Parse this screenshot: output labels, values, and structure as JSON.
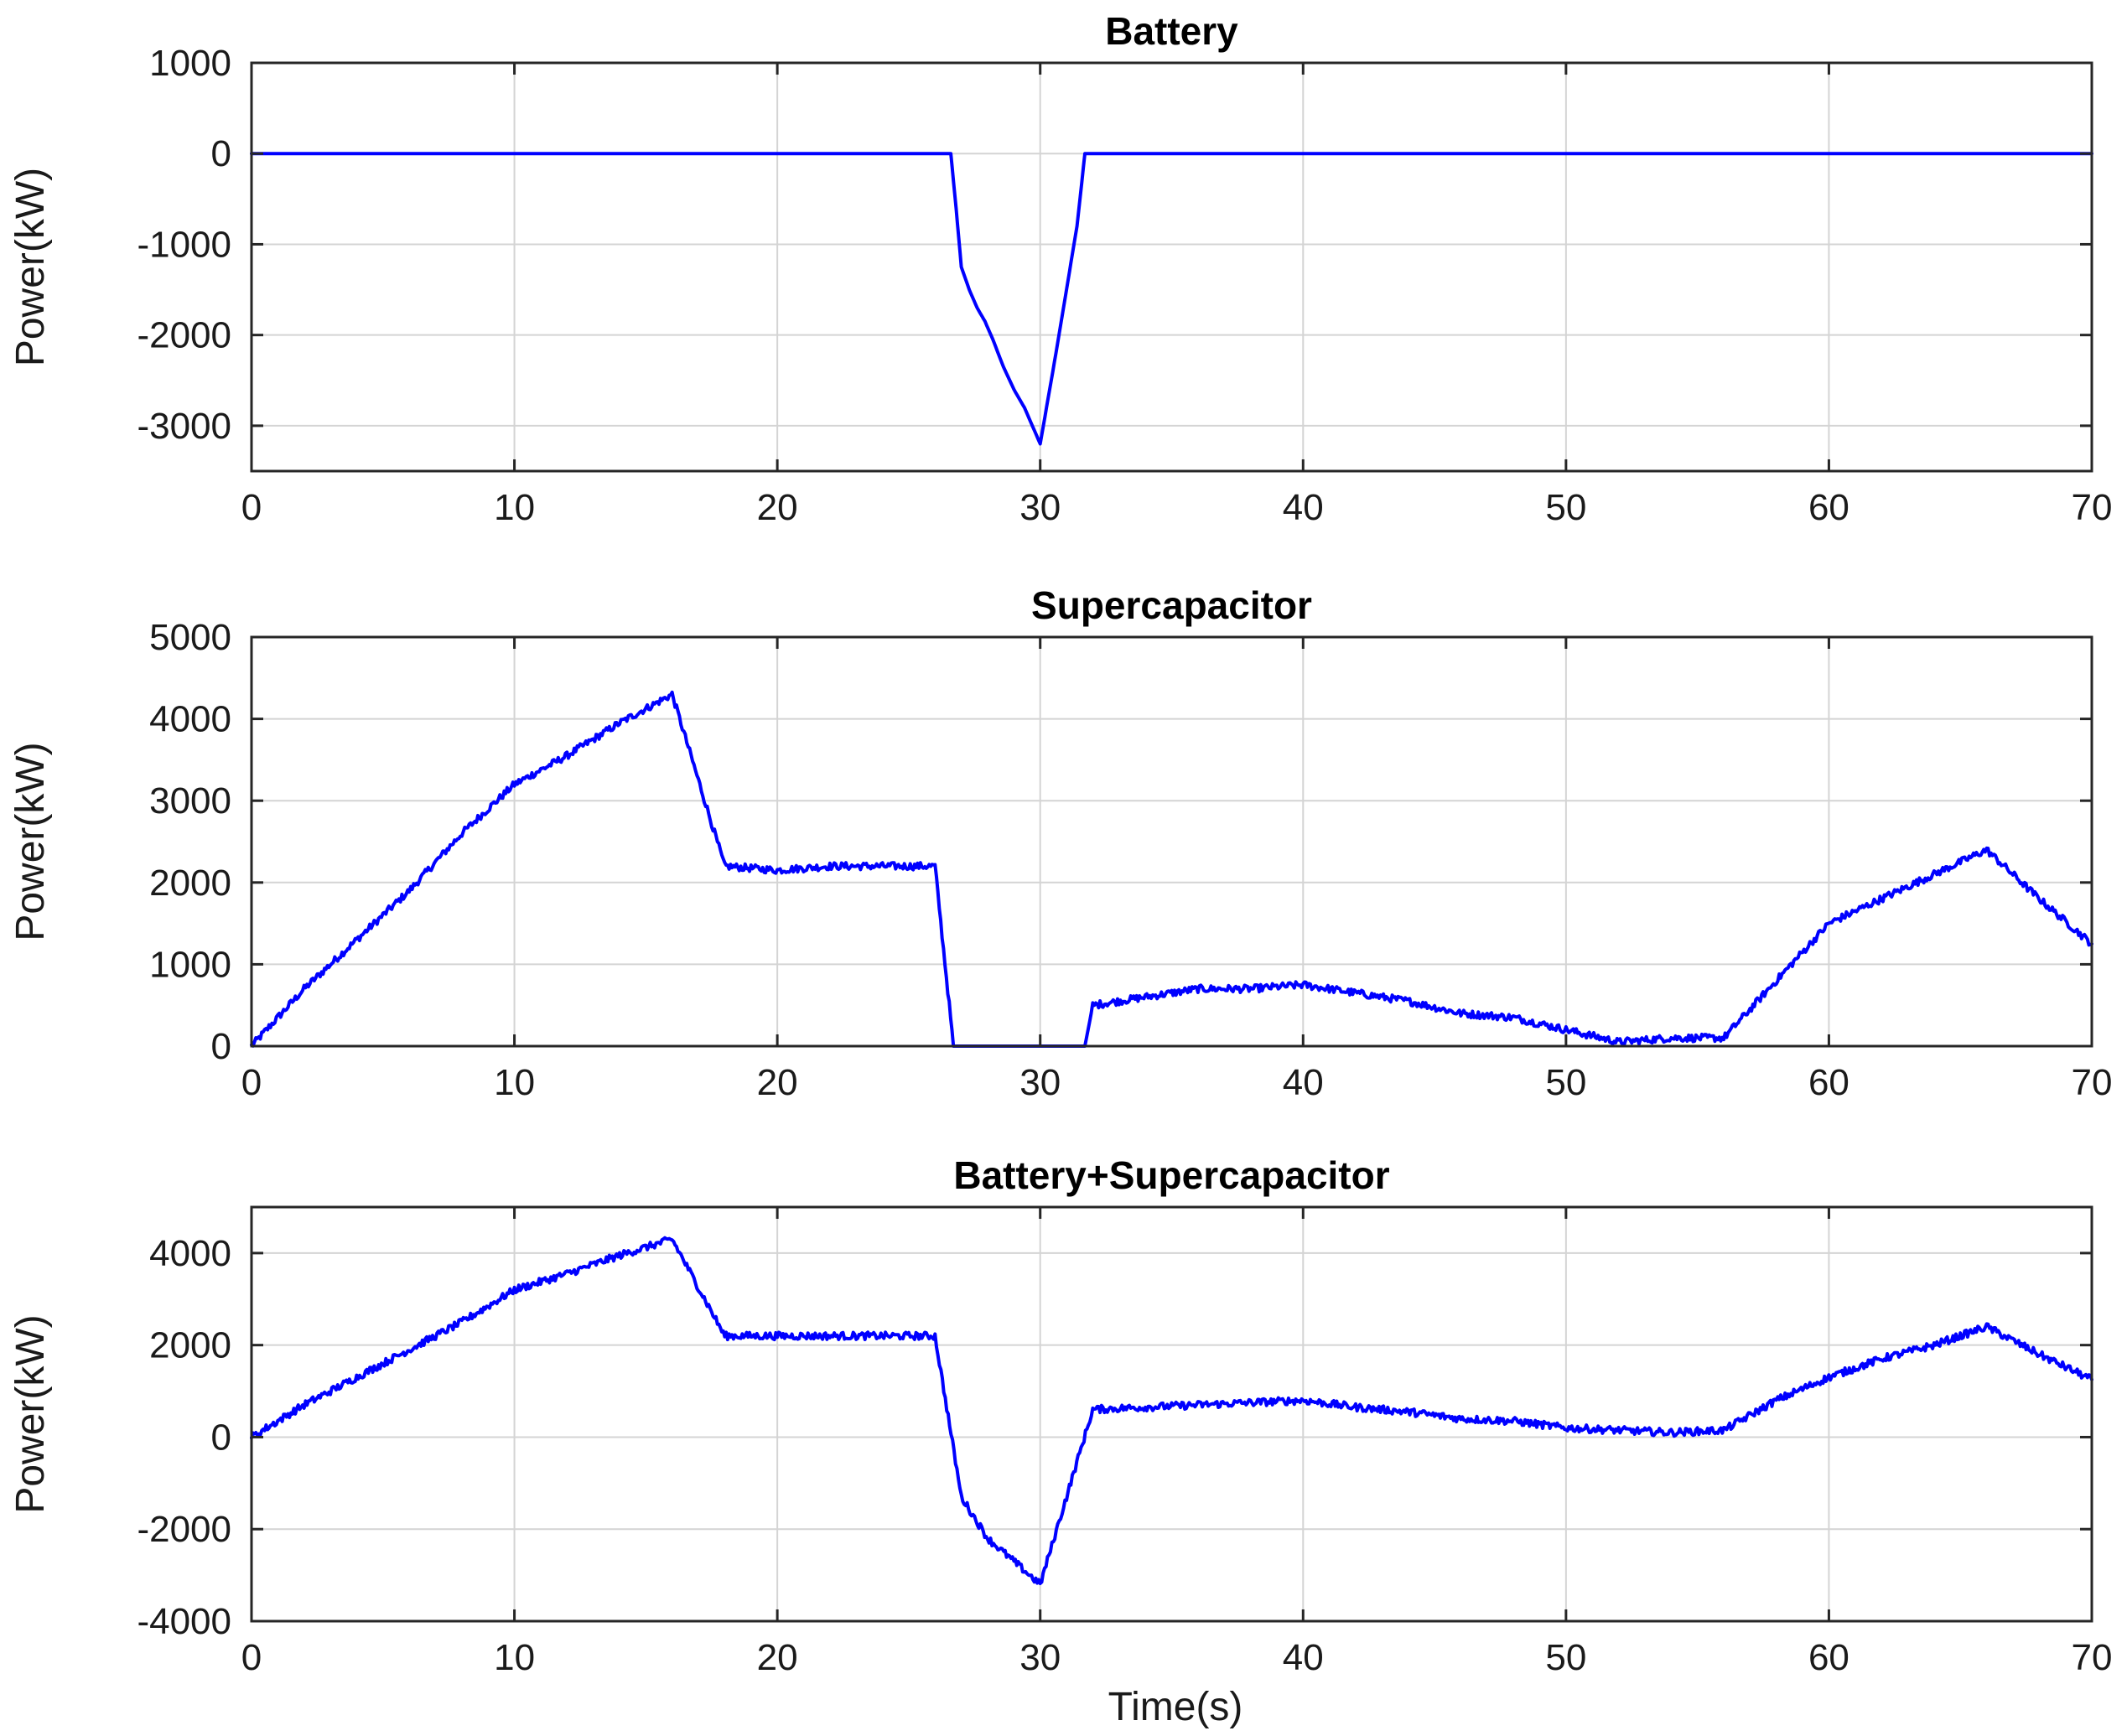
{
  "figure": {
    "xlabel_bottom": "Time(s)"
  },
  "chart_data": [
    {
      "type": "line",
      "title": "Battery",
      "xlabel": "",
      "ylabel": "Power(kW)",
      "xlim": [
        0,
        70
      ],
      "ylim": [
        -3500,
        1000
      ],
      "xticks": [
        0,
        10,
        20,
        30,
        40,
        50,
        60,
        70
      ],
      "yticks": [
        -3000,
        -2000,
        -1000,
        0,
        1000
      ],
      "grid": true,
      "series": [
        {
          "color": "#0000ff",
          "x": [
            0,
            26.6,
            26.8,
            27.0,
            27.3,
            27.6,
            27.9,
            28.2,
            28.6,
            29.0,
            29.4,
            29.7,
            30.0,
            30.3,
            30.6,
            31.0,
            31.4,
            31.7,
            70
          ],
          "y": [
            0,
            0,
            -600,
            -1250,
            -1500,
            -1700,
            -1850,
            -2050,
            -2350,
            -2600,
            -2800,
            -3000,
            -3200,
            -2700,
            -2200,
            -1500,
            -800,
            0,
            0
          ]
        }
      ]
    },
    {
      "type": "line",
      "title": "Supercapacitor",
      "xlabel": "",
      "ylabel": "Power(kW)",
      "xlim": [
        0,
        70
      ],
      "ylim": [
        0,
        5000
      ],
      "xticks": [
        0,
        10,
        20,
        30,
        40,
        50,
        60,
        70
      ],
      "yticks": [
        0,
        1000,
        2000,
        3000,
        4000,
        5000
      ],
      "grid": true,
      "series": [
        {
          "color": "#0000ff",
          "x": [
            0,
            2,
            4,
            6,
            8,
            10,
            12,
            14,
            16,
            18,
            20,
            22,
            24,
            26,
            26.7,
            31.7,
            32,
            34,
            36,
            38,
            40,
            42,
            44,
            46,
            48,
            50,
            52,
            54,
            56,
            58,
            60,
            62,
            64,
            66,
            68,
            70
          ],
          "y": [
            0,
            700,
            1300,
            1900,
            2600,
            3200,
            3550,
            3950,
            4300,
            2200,
            2150,
            2200,
            2200,
            2200,
            0,
            0,
            500,
            600,
            700,
            700,
            750,
            650,
            550,
            400,
            350,
            200,
            50,
            100,
            100,
            800,
            1500,
            1800,
            2100,
            2400,
            1800,
            1250
          ]
        }
      ]
    },
    {
      "type": "line",
      "title": "Battery+Supercapacitor",
      "xlabel": "Time(s)",
      "ylabel": "Power(kW)",
      "xlim": [
        0,
        70
      ],
      "ylim": [
        -4000,
        5000
      ],
      "xticks": [
        0,
        10,
        20,
        30,
        40,
        50,
        60,
        70
      ],
      "yticks": [
        -4000,
        -2000,
        0,
        2000,
        4000
      ],
      "grid": true,
      "series": [
        {
          "color": "#0000ff",
          "x": [
            0,
            2,
            4,
            6,
            8,
            10,
            12,
            14,
            16,
            18,
            20,
            22,
            24,
            26,
            27,
            28,
            29,
            30,
            32,
            34,
            36,
            38,
            40,
            42,
            44,
            46,
            48,
            50,
            52,
            54,
            56,
            58,
            60,
            62,
            64,
            66,
            68,
            70
          ],
          "y": [
            0,
            700,
            1300,
            1900,
            2500,
            3200,
            3550,
            3950,
            4300,
            2200,
            2200,
            2200,
            2200,
            2200,
            -1300,
            -2200,
            -2700,
            -3200,
            600,
            650,
            700,
            750,
            800,
            650,
            550,
            400,
            350,
            200,
            150,
            100,
            150,
            800,
            1300,
            1700,
            2000,
            2400,
            1800,
            1250
          ]
        }
      ]
    }
  ]
}
